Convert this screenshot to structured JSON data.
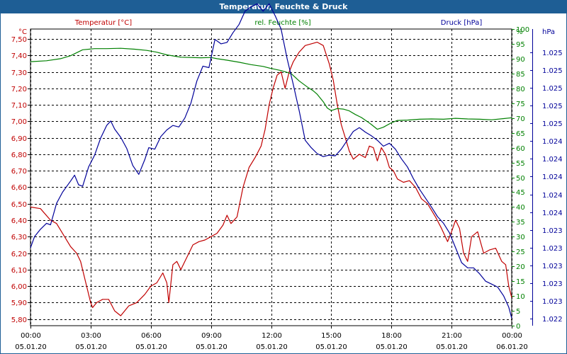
{
  "window": {
    "title": "Temperatur, Feuchte & Druck"
  },
  "chart_data": {
    "type": "line",
    "title": "Temperatur, Feuchte & Druck",
    "grid": true,
    "x": {
      "ticks": [
        {
          "time": "00:00",
          "date": "05.01.20"
        },
        {
          "time": "03:00",
          "date": "05.01.20"
        },
        {
          "time": "06:00",
          "date": "05.01.20"
        },
        {
          "time": "09:00",
          "date": "05.01.20"
        },
        {
          "time": "12:00",
          "date": "05.01.20"
        },
        {
          "time": "15:00",
          "date": "05.01.20"
        },
        {
          "time": "18:00",
          "date": "05.01.20"
        },
        {
          "time": "21:00",
          "date": "05.01.20"
        },
        {
          "time": "00:00",
          "date": "06.01.20"
        }
      ],
      "range_hours": [
        0,
        24
      ]
    },
    "axes": {
      "temperature": {
        "label": "Temperatur [°C]",
        "unit": "°C",
        "color": "#c00000",
        "range": [
          5.76,
          7.56
        ],
        "ticks": [
          "7,50",
          "7,40",
          "7,30",
          "7,20",
          "7,10",
          "7,00",
          "6,90",
          "6,80",
          "6,70",
          "6,60",
          "6,50",
          "6,40",
          "6,30",
          "6,20",
          "6,10",
          "6,00",
          "5,90",
          "5,80"
        ]
      },
      "humidity": {
        "label": "rel. Feuchte [%]",
        "unit": "%",
        "color": "#008000",
        "range": [
          0,
          100
        ],
        "ticks": [
          "100",
          "95",
          "90",
          "85",
          "80",
          "75",
          "70",
          "65",
          "60",
          "55",
          "50",
          "45",
          "40",
          "35",
          "30",
          "25",
          "20",
          "15",
          "10",
          "5",
          "0"
        ]
      },
      "pressure": {
        "label": "Druck [hPa]",
        "unit": "hPa",
        "color": "#000099",
        "range": [
          1.0218,
          1.0258
        ],
        "ticks": [
          "1.025",
          "1.025",
          "1.025",
          "1.025",
          "1.025",
          "1.024",
          "1.024",
          "1.024",
          "1.024",
          "1.024",
          "1.023",
          "1.023",
          "1.023",
          "1.023",
          "1.023",
          "1.022"
        ]
      }
    },
    "series": [
      {
        "name": "Temperatur [°C]",
        "axis": "temperature",
        "color": "#c00000",
        "points": [
          [
            0,
            6.48
          ],
          [
            0.5,
            6.47
          ],
          [
            1,
            6.4
          ],
          [
            1.3,
            6.38
          ],
          [
            1.7,
            6.3
          ],
          [
            2,
            6.24
          ],
          [
            2.3,
            6.2
          ],
          [
            2.5,
            6.15
          ],
          [
            2.8,
            6.0
          ],
          [
            3.0,
            5.9
          ],
          [
            3.1,
            5.87
          ],
          [
            3.3,
            5.9
          ],
          [
            3.6,
            5.92
          ],
          [
            3.9,
            5.92
          ],
          [
            4.2,
            5.85
          ],
          [
            4.5,
            5.82
          ],
          [
            4.9,
            5.88
          ],
          [
            5.3,
            5.9
          ],
          [
            5.7,
            5.95
          ],
          [
            6.0,
            6.0
          ],
          [
            6.3,
            6.02
          ],
          [
            6.6,
            6.08
          ],
          [
            6.8,
            6.02
          ],
          [
            6.9,
            5.9
          ],
          [
            7.1,
            6.13
          ],
          [
            7.3,
            6.15
          ],
          [
            7.5,
            6.1
          ],
          [
            7.7,
            6.15
          ],
          [
            7.9,
            6.2
          ],
          [
            8.1,
            6.25
          ],
          [
            8.4,
            6.27
          ],
          [
            8.7,
            6.28
          ],
          [
            9.0,
            6.3
          ],
          [
            9.3,
            6.32
          ],
          [
            9.6,
            6.37
          ],
          [
            9.8,
            6.43
          ],
          [
            10.0,
            6.38
          ],
          [
            10.3,
            6.42
          ],
          [
            10.6,
            6.6
          ],
          [
            10.9,
            6.72
          ],
          [
            11.2,
            6.78
          ],
          [
            11.5,
            6.85
          ],
          [
            11.7,
            6.95
          ],
          [
            11.9,
            7.1
          ],
          [
            12.1,
            7.2
          ],
          [
            12.3,
            7.28
          ],
          [
            12.5,
            7.3
          ],
          [
            12.7,
            7.2
          ],
          [
            12.9,
            7.3
          ],
          [
            13.1,
            7.36
          ],
          [
            13.4,
            7.42
          ],
          [
            13.7,
            7.46
          ],
          [
            14.0,
            7.47
          ],
          [
            14.3,
            7.48
          ],
          [
            14.6,
            7.46
          ],
          [
            14.9,
            7.35
          ],
          [
            15.1,
            7.25
          ],
          [
            15.3,
            7.1
          ],
          [
            15.5,
            6.98
          ],
          [
            15.7,
            6.9
          ],
          [
            15.9,
            6.82
          ],
          [
            16.1,
            6.77
          ],
          [
            16.4,
            6.8
          ],
          [
            16.7,
            6.78
          ],
          [
            16.9,
            6.85
          ],
          [
            17.1,
            6.84
          ],
          [
            17.3,
            6.76
          ],
          [
            17.5,
            6.84
          ],
          [
            17.7,
            6.8
          ],
          [
            17.9,
            6.72
          ],
          [
            18.1,
            6.7
          ],
          [
            18.3,
            6.65
          ],
          [
            18.6,
            6.63
          ],
          [
            18.9,
            6.64
          ],
          [
            19.2,
            6.6
          ],
          [
            19.5,
            6.53
          ],
          [
            19.8,
            6.5
          ],
          [
            20.2,
            6.42
          ],
          [
            20.5,
            6.35
          ],
          [
            20.8,
            6.27
          ],
          [
            21.0,
            6.33
          ],
          [
            21.2,
            6.4
          ],
          [
            21.4,
            6.35
          ],
          [
            21.6,
            6.2
          ],
          [
            21.8,
            6.15
          ],
          [
            22.0,
            6.3
          ],
          [
            22.3,
            6.33
          ],
          [
            22.6,
            6.2
          ],
          [
            22.9,
            6.22
          ],
          [
            23.2,
            6.23
          ],
          [
            23.5,
            6.15
          ],
          [
            23.7,
            6.13
          ],
          [
            23.85,
            6.0
          ],
          [
            24.0,
            5.93
          ]
        ]
      },
      {
        "name": "rel. Feuchte [%]",
        "axis": "humidity",
        "color": "#008000",
        "points": [
          [
            0,
            89
          ],
          [
            0.8,
            89.3
          ],
          [
            1.5,
            90
          ],
          [
            2,
            91
          ],
          [
            2.6,
            93
          ],
          [
            3.2,
            93.4
          ],
          [
            3.8,
            93.4
          ],
          [
            4.5,
            93.5
          ],
          [
            5.2,
            93.2
          ],
          [
            5.8,
            92.8
          ],
          [
            6.3,
            92.2
          ],
          [
            6.8,
            91.3
          ],
          [
            7.5,
            90.5
          ],
          [
            8.5,
            90.3
          ],
          [
            9.0,
            90.4
          ],
          [
            9.3,
            90
          ],
          [
            9.8,
            89.5
          ],
          [
            10.4,
            88.8
          ],
          [
            11,
            88
          ],
          [
            11.6,
            87.4
          ],
          [
            12,
            86.7
          ],
          [
            12.5,
            86
          ],
          [
            13,
            85
          ],
          [
            13.4,
            82.5
          ],
          [
            13.8,
            80.5
          ],
          [
            14.1,
            79.2
          ],
          [
            14.3,
            78
          ],
          [
            14.6,
            75.5
          ],
          [
            14.8,
            73.4
          ],
          [
            15.0,
            72.5
          ],
          [
            15.3,
            73.2
          ],
          [
            15.6,
            73
          ],
          [
            15.9,
            72.4
          ],
          [
            16.2,
            71.2
          ],
          [
            16.5,
            70.2
          ],
          [
            16.8,
            68.8
          ],
          [
            17.0,
            67.8
          ],
          [
            17.3,
            66.2
          ],
          [
            17.6,
            66.9
          ],
          [
            18.0,
            68.4
          ],
          [
            18.3,
            69.2
          ],
          [
            18.8,
            69.3
          ],
          [
            19.4,
            69.6
          ],
          [
            20,
            69.7
          ],
          [
            20.6,
            69.6
          ],
          [
            21.2,
            69.9
          ],
          [
            21.8,
            69.7
          ],
          [
            22.4,
            69.6
          ],
          [
            23.0,
            69.4
          ],
          [
            23.6,
            69.8
          ],
          [
            24.0,
            70.1
          ]
        ]
      },
      {
        "name": "Druck [hPa]",
        "axis": "pressure",
        "color": "#000099",
        "points": [
          [
            0,
            1.02285
          ],
          [
            0.2,
            1.023
          ],
          [
            0.5,
            1.0231
          ],
          [
            0.8,
            1.02318
          ],
          [
            1.0,
            1.02316
          ],
          [
            1.3,
            1.02345
          ],
          [
            1.6,
            1.0236
          ],
          [
            2.0,
            1.02375
          ],
          [
            2.2,
            1.02383
          ],
          [
            2.4,
            1.0237
          ],
          [
            2.6,
            1.02368
          ],
          [
            2.9,
            1.02394
          ],
          [
            3.2,
            1.0241
          ],
          [
            3.5,
            1.02433
          ],
          [
            3.8,
            1.0245
          ],
          [
            4.0,
            1.02456
          ],
          [
            4.2,
            1.02445
          ],
          [
            4.5,
            1.02434
          ],
          [
            4.8,
            1.02419
          ],
          [
            5.1,
            1.02396
          ],
          [
            5.4,
            1.02384
          ],
          [
            5.7,
            1.02404
          ],
          [
            5.9,
            1.0242
          ],
          [
            6.2,
            1.02418
          ],
          [
            6.5,
            1.02435
          ],
          [
            6.8,
            1.02444
          ],
          [
            7.1,
            1.0245
          ],
          [
            7.4,
            1.02448
          ],
          [
            7.7,
            1.0246
          ],
          [
            8.0,
            1.0248
          ],
          [
            8.3,
            1.0251
          ],
          [
            8.6,
            1.0253
          ],
          [
            8.9,
            1.02528
          ],
          [
            9.2,
            1.02566
          ],
          [
            9.5,
            1.0256
          ],
          [
            9.8,
            1.02562
          ],
          [
            10.1,
            1.02575
          ],
          [
            10.4,
            1.02586
          ],
          [
            10.7,
            1.02604
          ],
          [
            11.0,
            1.0261
          ],
          [
            11.3,
            1.02614
          ],
          [
            11.6,
            1.02604
          ],
          [
            11.9,
            1.02614
          ],
          [
            12.2,
            1.02598
          ],
          [
            12.5,
            1.0258
          ],
          [
            12.8,
            1.0254
          ],
          [
            13.1,
            1.02506
          ],
          [
            13.4,
            1.0247
          ],
          [
            13.7,
            1.0243
          ],
          [
            14.0,
            1.0242
          ],
          [
            14.3,
            1.02412
          ],
          [
            14.6,
            1.02408
          ],
          [
            14.9,
            1.0241
          ],
          [
            15.2,
            1.02409
          ],
          [
            15.5,
            1.02418
          ],
          [
            15.8,
            1.0243
          ],
          [
            16.1,
            1.02442
          ],
          [
            16.4,
            1.02447
          ],
          [
            16.7,
            1.02441
          ],
          [
            17.0,
            1.02436
          ],
          [
            17.3,
            1.0243
          ],
          [
            17.6,
            1.02422
          ],
          [
            17.9,
            1.02426
          ],
          [
            18.2,
            1.02418
          ],
          [
            18.5,
            1.02405
          ],
          [
            18.8,
            1.02394
          ],
          [
            19.1,
            1.02378
          ],
          [
            19.4,
            1.02364
          ],
          [
            19.7,
            1.02352
          ],
          [
            20.0,
            1.0234
          ],
          [
            20.3,
            1.02327
          ],
          [
            20.6,
            1.02318
          ],
          [
            20.9,
            1.02305
          ],
          [
            21.2,
            1.02285
          ],
          [
            21.5,
            1.02265
          ],
          [
            21.8,
            1.02258
          ],
          [
            22.1,
            1.02258
          ],
          [
            22.4,
            1.0225
          ],
          [
            22.7,
            1.0224
          ],
          [
            23.0,
            1.02236
          ],
          [
            23.3,
            1.02232
          ],
          [
            23.6,
            1.0222
          ],
          [
            23.85,
            1.02205
          ],
          [
            24.0,
            1.0219
          ]
        ]
      }
    ]
  }
}
